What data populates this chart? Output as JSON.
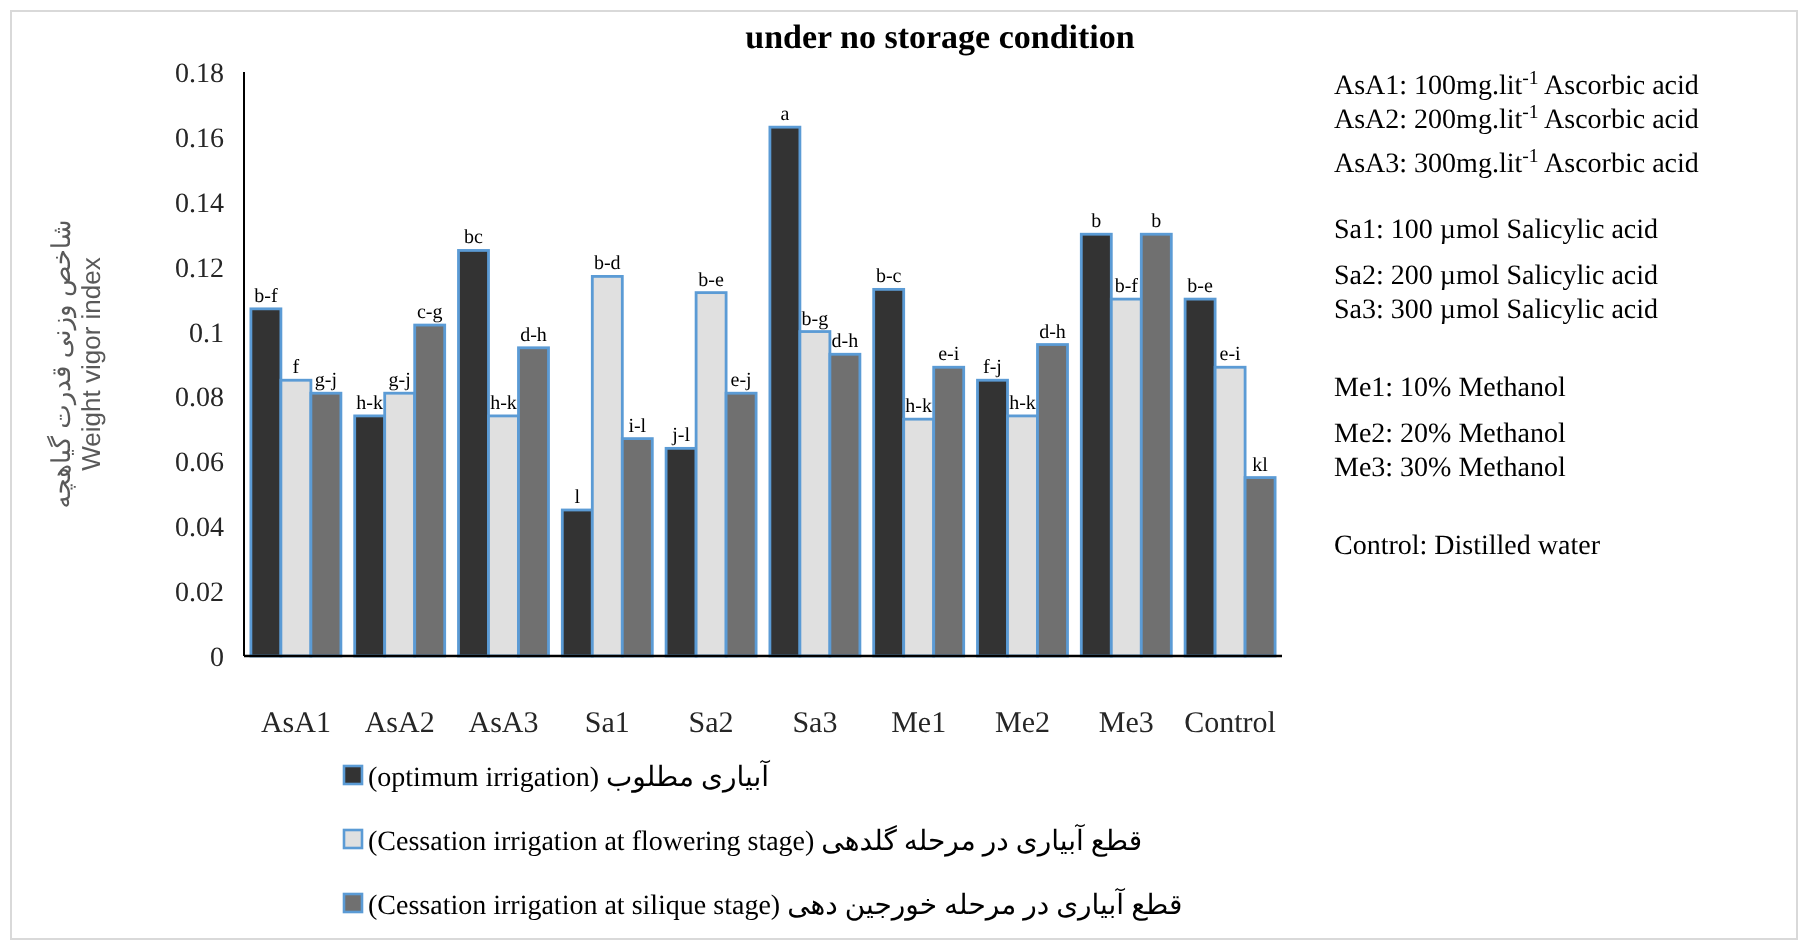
{
  "chart_data": {
    "type": "bar",
    "title": "under no storage condition",
    "ylabel": "شاخص وزنی قدرت گیاهچه\nWeight vigor index",
    "categories": [
      "AsA1",
      "AsA2",
      "AsA3",
      "Sa1",
      "Sa2",
      "Sa3",
      "Me1",
      "Me2",
      "Me3",
      "Control"
    ],
    "series": [
      {
        "name": "آبیاری مطلوب (optimum irrigation)",
        "color": "#333333",
        "values": [
          0.107,
          0.074,
          0.125,
          0.045,
          0.064,
          0.163,
          0.113,
          0.085,
          0.13,
          0.11
        ],
        "value_labels": [
          "b-f",
          "h-k",
          "bc",
          "l",
          "j-l",
          "a",
          "b-c",
          "f-j",
          "b",
          "b-e"
        ]
      },
      {
        "name": "قطع آبیاری در مرحله گلدهی (Cessation irrigation at flowering stage)",
        "color": "#e0e0e0",
        "values": [
          0.085,
          0.081,
          0.074,
          0.117,
          0.112,
          0.1,
          0.073,
          0.074,
          0.11,
          0.089
        ],
        "value_labels": [
          "f",
          "g-j",
          "h-k",
          "b-d",
          "b-e",
          "b-g",
          "h-k",
          "h-k",
          "b-f",
          "e-i"
        ]
      },
      {
        "name": "قطع آبیاری در مرحله خورجین دهی (Cessation irrigation at silique stage)",
        "color": "#707070",
        "values": [
          0.081,
          0.102,
          0.095,
          0.067,
          0.081,
          0.093,
          0.089,
          0.096,
          0.13,
          0.055
        ],
        "value_labels": [
          "g-j",
          "c-g",
          "d-h",
          "i-l",
          "e-j",
          "d-h",
          "e-i",
          "d-h",
          "b",
          "kl"
        ]
      }
    ],
    "ylim": [
      0,
      0.18
    ],
    "yticks": [
      0,
      0.02,
      0.04,
      0.06,
      0.08,
      0.1,
      0.12,
      0.14,
      0.16,
      0.18
    ],
    "legend": "bottom",
    "annotations": [
      "AsA1: 100mg.lit$^{-1}$ Ascorbic acid",
      "AsA2: 200mg.lit$^{-1}$ Ascorbic acid",
      "AsA3: 300mg.lit$^{-1}$ Ascorbic acid",
      "Sa1: 100 µmol Salicylic acid",
      "Sa2: 200 µmol Salicylic acid",
      "Sa3: 300 µmol Salicylic acid",
      "Me1: 10% Methanol",
      "Me2: 20% Methanol",
      "Me3: 30% Methanol",
      "Control: Distilled water"
    ]
  }
}
